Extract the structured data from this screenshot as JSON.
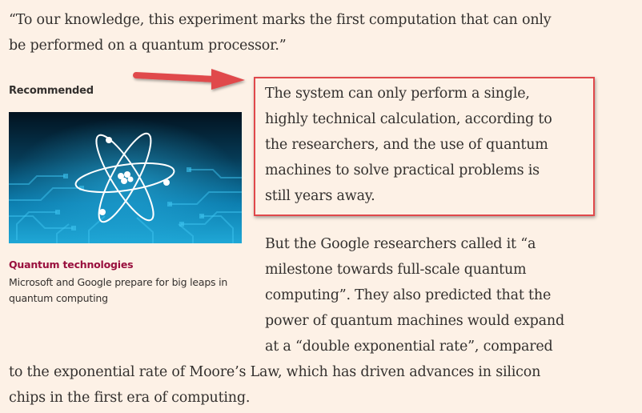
{
  "quote": {
    "lines": [
      "“To our knowledge, this experiment marks the first computation that can only",
      "be performed on a quantum processor.”"
    ]
  },
  "recommended": {
    "label": "Recommended",
    "topic": "Quantum technologies",
    "headline": "Microsoft and Google prepare for big leaps in quantum computing",
    "image_alt": "atom-illustration"
  },
  "highlight_paragraph": {
    "lines": [
      "The system can only perform a single,",
      "highly technical calculation, according to",
      "the researchers, and the use of quantum",
      "machines to solve practical problems is",
      "still years away."
    ]
  },
  "paragraph2": {
    "lines": [
      "But the Google researchers called it “a",
      "milestone towards full-scale quantum",
      "computing”. They also predicted that the",
      "power of quantum machines would expand",
      "at a “double exponential rate”, compared"
    ],
    "full_width_lines": [
      "to the exponential rate of Moore’s Law, which has driven advances in silicon",
      "chips in the first era of computing."
    ]
  },
  "colors": {
    "background": "#fdf1e6",
    "text": "#33302e",
    "topic": "#990f3d",
    "annotation_red": "#e0484b"
  }
}
